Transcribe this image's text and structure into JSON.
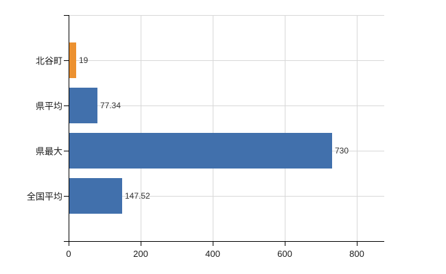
{
  "chart_data": {
    "type": "bar",
    "orientation": "horizontal",
    "title": "",
    "xlabel": "",
    "ylabel": "",
    "categories": [
      "北谷町",
      "県平均",
      "県最大",
      "全国平均"
    ],
    "values": [
      19,
      77.34,
      730,
      147.52
    ],
    "value_labels": [
      "19",
      "77.34",
      "730",
      "147.52"
    ],
    "bar_colors": [
      "#ec9130",
      "#4170ac",
      "#4170ac",
      "#4170ac"
    ],
    "xticks": [
      0,
      200,
      400,
      600,
      800
    ],
    "xtick_labels": [
      "0",
      "200",
      "400",
      "600",
      "800"
    ],
    "xlim": [
      0,
      876
    ],
    "grid": true,
    "legend": "none",
    "colors": {
      "highlight_bar": "#ec9130",
      "default_bar": "#4170ac",
      "grid": "#d8d8d8",
      "axis": "#000000",
      "text": "#1a1a1a",
      "value_text": "#333333",
      "background": "#ffffff"
    }
  }
}
